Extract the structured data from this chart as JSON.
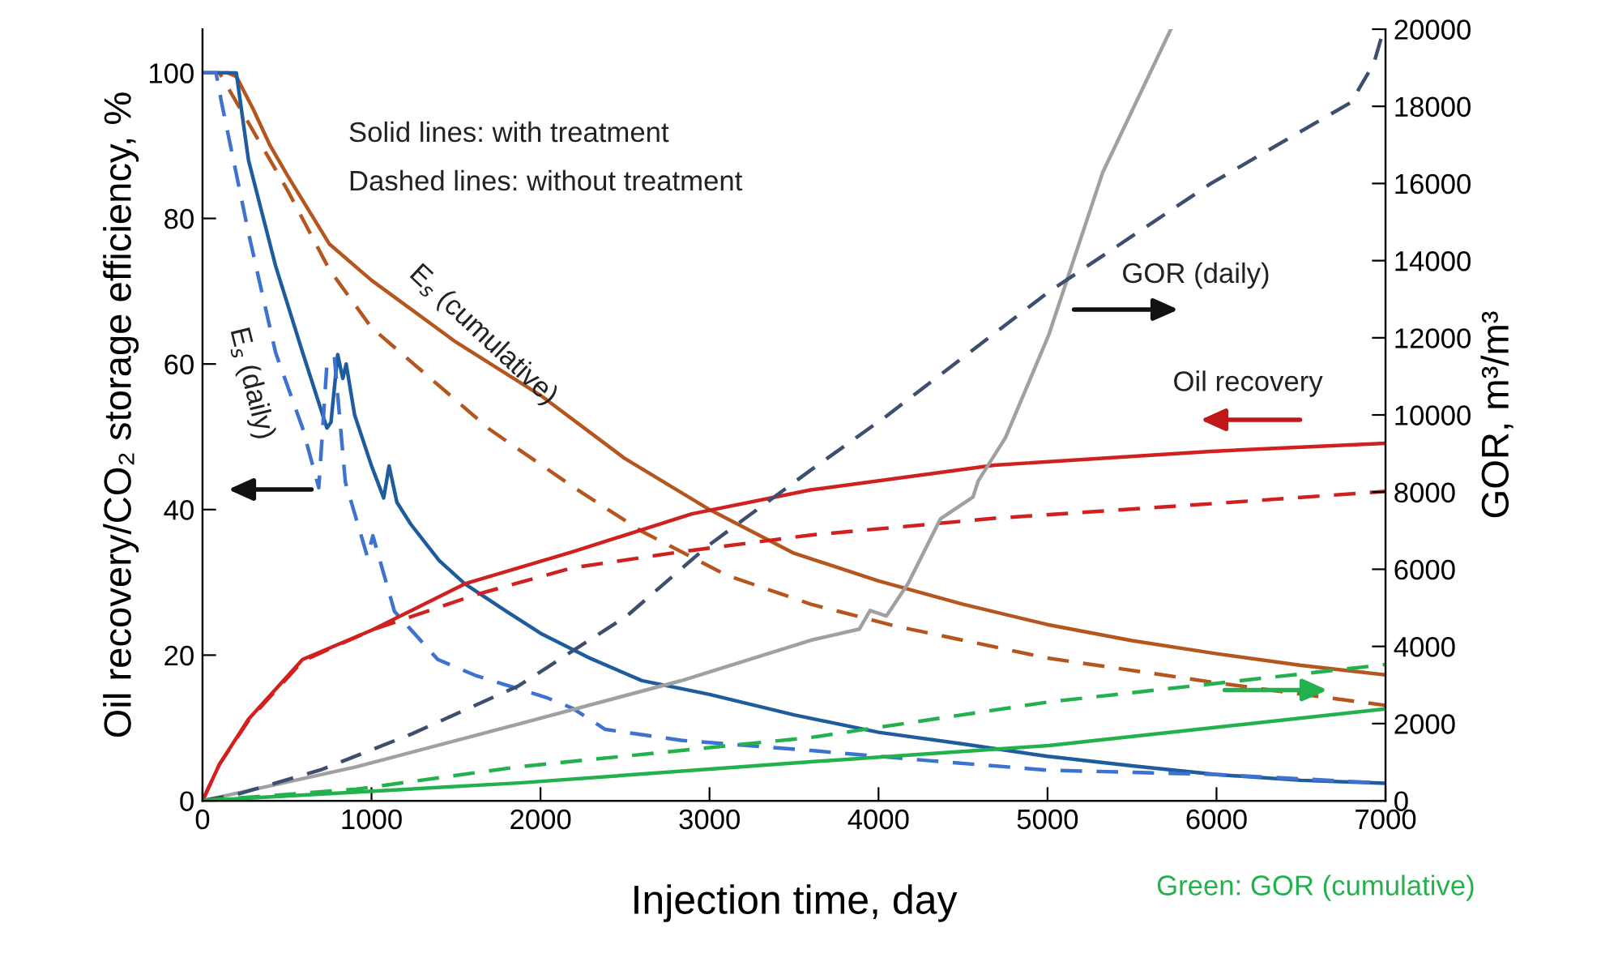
{
  "chart_data": {
    "type": "line",
    "xlabel": "Injection time, day",
    "ylabel": "Oil recovery/CO₂ storage efficiency, %",
    "y2label": "GOR, m³/m³",
    "xlim": [
      0,
      7000
    ],
    "xticks": [
      0,
      1000,
      2000,
      3000,
      4000,
      5000,
      6000,
      7000
    ],
    "ylim": [
      0,
      106
    ],
    "yticks": [
      0,
      20,
      40,
      60,
      80,
      100
    ],
    "y2lim": [
      0,
      20000
    ],
    "y2ticks": [
      0,
      2000,
      4000,
      6000,
      8000,
      10000,
      12000,
      14000,
      16000,
      18000,
      20000
    ],
    "grid": false,
    "annotations": [
      "Solid lines: with treatment",
      "Dashed lines: without treatment",
      "E$_{s}$ (cumulative)",
      "E$_{s}$ (daily)",
      "GOR (daily)",
      "Oil recovery",
      "Green: GOR (cumulative)"
    ],
    "series": [
      {
        "color": "#b5561e",
        "line_style": "solid",
        "x": [
          0,
          150,
          200,
          300,
          400,
          500,
          750,
          1000,
          1500,
          2000,
          2500,
          3000,
          3500,
          4000,
          4500,
          5000,
          5500,
          6000,
          6500,
          7000
        ],
        "values": [
          100,
          100,
          99.5,
          95,
          90,
          86,
          76.5,
          71.5,
          63,
          55.7,
          47,
          40,
          34,
          30.2,
          27,
          24.2,
          22,
          20.2,
          18.6,
          17.3
        ]
      },
      {
        "color": "#b5561e",
        "line_style": "dashed",
        "x": [
          0,
          100,
          300,
          500,
          750,
          1000,
          1200,
          1700,
          2200,
          2600,
          3100,
          3600,
          4100,
          5000,
          6000,
          7000
        ],
        "values": [
          100,
          100,
          92,
          84,
          73,
          65,
          61,
          51,
          43,
          37,
          31,
          27,
          24,
          19.6,
          16.2,
          13.1
        ]
      },
      {
        "color": "#1f5c9e",
        "line_style": "solid",
        "x": [
          0,
          200,
          272,
          432,
          592,
          736,
          760,
          800,
          830,
          850,
          900,
          1000,
          1072,
          1104,
          1150,
          1232,
          1400,
          1552,
          1800,
          2000,
          2300,
          2600,
          3000,
          3500,
          4000,
          4500,
          5000,
          5500,
          6000,
          6500,
          7000
        ],
        "values": [
          100,
          100,
          88,
          73.5,
          61.6,
          51.2,
          52,
          61.3,
          58,
          60,
          53,
          46,
          41.6,
          46,
          41,
          38,
          33,
          29.8,
          26,
          23,
          19.5,
          16.5,
          14.6,
          11.8,
          9.4,
          7.8,
          6.1,
          4.8,
          3.6,
          2.8,
          2.4
        ]
      },
      {
        "color": "#3d72d0",
        "line_style": "dashed",
        "x": [
          0,
          80,
          112,
          272,
          432,
          592,
          688,
          736,
          780,
          845,
          976,
          1008,
          1136,
          1392,
          1616,
          2032,
          2190,
          2383,
          2831,
          3600,
          4300,
          5000,
          6000,
          7000
        ],
        "values": [
          100,
          100,
          96,
          78,
          61.6,
          51.2,
          43,
          60,
          61,
          43.8,
          33.5,
          36.4,
          26,
          19.4,
          17.2,
          14.2,
          12.7,
          9.8,
          8.3,
          6.9,
          5.5,
          4.2,
          3.6,
          2.4
        ]
      },
      {
        "color": "#d0201f",
        "line_style": "solid",
        "x": [
          0,
          100,
          272,
          592,
          1008,
          1552,
          2190,
          2895,
          3599,
          4685,
          5967,
          7000
        ],
        "values": [
          0,
          5,
          11.2,
          19.4,
          23.5,
          29.8,
          34.2,
          39.4,
          42.7,
          46.1,
          48,
          49.1
        ]
      },
      {
        "color": "#d0201f",
        "line_style": "dashed",
        "x": [
          0,
          100,
          272,
          592,
          1008,
          1616,
          2190,
          2831,
          3599,
          4685,
          5967,
          7000
        ],
        "values": [
          0,
          5,
          11,
          19.2,
          23.5,
          28.3,
          32,
          34.2,
          36.5,
          38.8,
          40.8,
          42.5
        ]
      },
      {
        "color": "#a0a0a0",
        "line_style": "solid",
        "axis": "y2",
        "x": [
          0,
          912,
          1871,
          2831,
          3599,
          3887,
          3950,
          4047,
          4175,
          4367,
          4559,
          4590,
          4751,
          5007,
          5326,
          5730
        ],
        "values": [
          0,
          880,
          1990,
          3110,
          4160,
          4450,
          4930,
          4790,
          5630,
          7310,
          7870,
          8290,
          9410,
          12070,
          16280,
          20000
        ]
      },
      {
        "color": "#3e4f6e",
        "line_style": "dashed",
        "axis": "y2",
        "x": [
          0,
          208,
          700,
          1232,
          1871,
          2511,
          2991,
          3599,
          4047,
          5007,
          5967,
          6795,
          6930,
          6990
        ],
        "values": [
          0,
          170,
          800,
          1720,
          2980,
          4790,
          6610,
          8570,
          9970,
          13190,
          16000,
          18100,
          19100,
          20000
        ]
      },
      {
        "color": "#23b14d",
        "line_style": "solid",
        "axis": "y2",
        "x": [
          0,
          1871,
          3599,
          5007,
          7000
        ],
        "values": [
          0,
          460,
          1010,
          1430,
          2380
        ]
      },
      {
        "color": "#23b14d",
        "line_style": "dashed",
        "axis": "y2",
        "x": [
          0,
          912,
          1871,
          3599,
          5007,
          7000
        ],
        "values": [
          0,
          300,
          880,
          1640,
          2560,
          3530
        ]
      }
    ]
  }
}
